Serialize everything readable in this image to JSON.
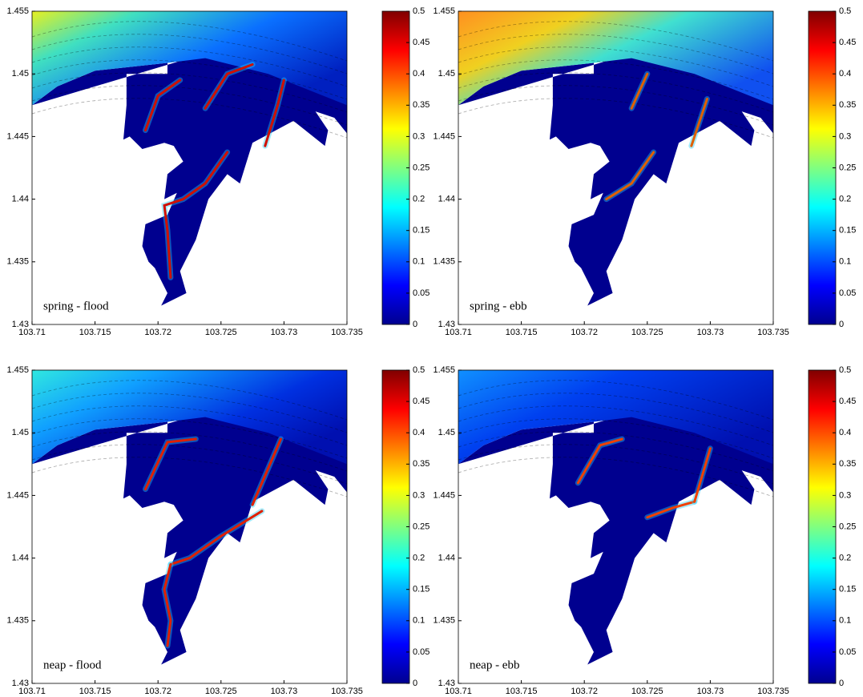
{
  "chart_data": [
    {
      "type": "map",
      "annotation": "spring - flood",
      "xlim": [
        103.71,
        103.735
      ],
      "ylim": [
        1.43,
        1.455
      ],
      "xticks": [
        103.71,
        103.715,
        103.72,
        103.725,
        103.73,
        103.735
      ],
      "yticks": [
        1.43,
        1.435,
        1.44,
        1.445,
        1.45,
        1.455
      ],
      "clim": [
        0,
        0.5
      ],
      "cticks": [
        0,
        0.05,
        0.1,
        0.15,
        0.2,
        0.25,
        0.3,
        0.35,
        0.4,
        0.45,
        0.5
      ],
      "colormap": [
        "#00008f",
        "#0000ff",
        "#0080ff",
        "#00ffff",
        "#80ff80",
        "#ffff00",
        "#ff8000",
        "#ff0000",
        "#800000"
      ]
    },
    {
      "type": "map",
      "annotation": "spring - ebb",
      "xlim": [
        103.71,
        103.735
      ],
      "ylim": [
        1.43,
        1.455
      ],
      "xticks": [
        103.71,
        103.715,
        103.72,
        103.725,
        103.73,
        103.735
      ],
      "yticks": [
        1.43,
        1.435,
        1.44,
        1.445,
        1.45,
        1.455
      ],
      "clim": [
        0,
        0.5
      ],
      "cticks": [
        0,
        0.05,
        0.1,
        0.15,
        0.2,
        0.25,
        0.3,
        0.35,
        0.4,
        0.45,
        0.5
      ],
      "colormap": [
        "#00008f",
        "#0000ff",
        "#0080ff",
        "#00ffff",
        "#80ff80",
        "#ffff00",
        "#ff8000",
        "#ff0000",
        "#800000"
      ]
    },
    {
      "type": "map",
      "annotation": "neap - flood",
      "xlim": [
        103.71,
        103.735
      ],
      "ylim": [
        1.43,
        1.455
      ],
      "xticks": [
        103.71,
        103.715,
        103.72,
        103.725,
        103.73,
        103.735
      ],
      "yticks": [
        1.43,
        1.435,
        1.44,
        1.445,
        1.45,
        1.455
      ],
      "clim": [
        0,
        0.5
      ],
      "cticks": [
        0,
        0.05,
        0.1,
        0.15,
        0.2,
        0.25,
        0.3,
        0.35,
        0.4,
        0.45,
        0.5
      ],
      "colormap": [
        "#00008f",
        "#0000ff",
        "#0080ff",
        "#00ffff",
        "#80ff80",
        "#ffff00",
        "#ff8000",
        "#ff0000",
        "#800000"
      ]
    },
    {
      "type": "map",
      "annotation": "neap - ebb",
      "xlim": [
        103.71,
        103.735
      ],
      "ylim": [
        1.43,
        1.455
      ],
      "xticks": [
        103.71,
        103.715,
        103.72,
        103.725,
        103.73,
        103.735
      ],
      "yticks": [
        1.43,
        1.435,
        1.44,
        1.445,
        1.45,
        1.455
      ],
      "clim": [
        0,
        0.5
      ],
      "cticks": [
        0,
        0.05,
        0.1,
        0.15,
        0.2,
        0.25,
        0.3,
        0.35,
        0.4,
        0.45,
        0.5
      ],
      "colormap": [
        "#00008f",
        "#0000ff",
        "#0080ff",
        "#00ffff",
        "#80ff80",
        "#ffff00",
        "#ff8000",
        "#ff0000",
        "#800000"
      ]
    }
  ]
}
